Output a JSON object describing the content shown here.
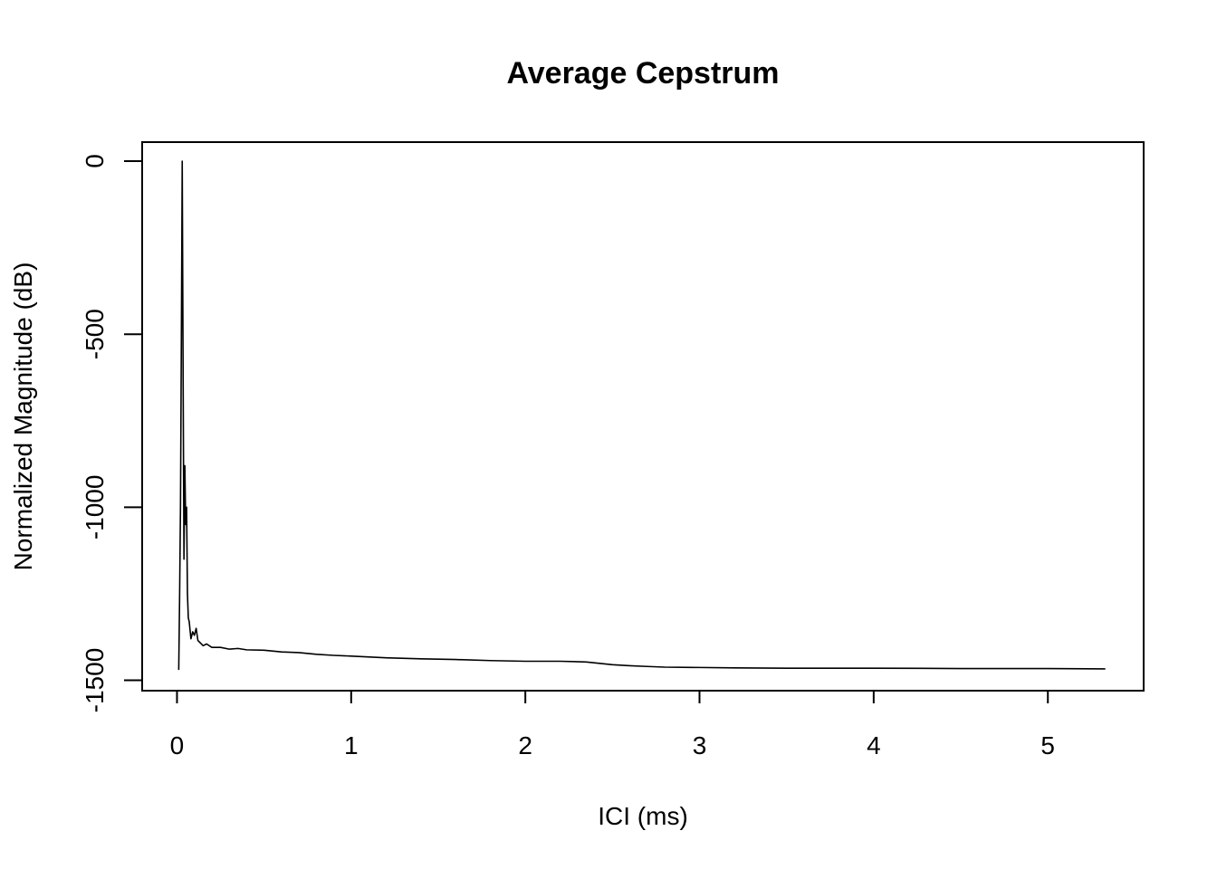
{
  "chart_data": {
    "type": "line",
    "title": "Average Cepstrum",
    "xlabel": "ICI (ms)",
    "ylabel": "Normalized Magnitude (dB)",
    "xlim": [
      -0.2,
      5.55
    ],
    "ylim": [
      -1530,
      55
    ],
    "x_ticks": [
      0,
      1,
      2,
      3,
      4,
      5
    ],
    "x_tick_labels": [
      "0",
      "1",
      "2",
      "3",
      "4",
      "5"
    ],
    "y_ticks": [
      0,
      -500,
      -1000,
      -1500
    ],
    "y_tick_labels": [
      "0",
      "-500",
      "-1000",
      "-1500"
    ],
    "grid": false,
    "legend": "none",
    "series": [
      {
        "color": "#000000",
        "x": [
          0.01,
          0.015,
          0.02,
          0.025,
          0.03,
          0.035,
          0.04,
          0.045,
          0.05,
          0.055,
          0.06,
          0.065,
          0.07,
          0.08,
          0.09,
          0.1,
          0.11,
          0.12,
          0.13,
          0.15,
          0.17,
          0.2,
          0.25,
          0.3,
          0.35,
          0.4,
          0.5,
          0.6,
          0.7,
          0.8,
          0.9,
          1.0,
          1.2,
          1.4,
          1.6,
          1.8,
          2.0,
          2.2,
          2.35,
          2.5,
          2.6,
          2.7,
          2.8,
          3.0,
          3.2,
          3.5,
          4.0,
          4.5,
          5.0,
          5.33
        ],
        "y": [
          -1470,
          -1260,
          -1000,
          -520,
          0,
          -600,
          -1150,
          -880,
          -1050,
          -1000,
          -1250,
          -1320,
          -1330,
          -1380,
          -1360,
          -1370,
          -1350,
          -1385,
          -1390,
          -1400,
          -1395,
          -1405,
          -1405,
          -1410,
          -1408,
          -1412,
          -1413,
          -1418,
          -1420,
          -1425,
          -1428,
          -1430,
          -1435,
          -1438,
          -1440,
          -1443,
          -1445,
          -1445,
          -1447,
          -1455,
          -1458,
          -1460,
          -1462,
          -1463,
          -1464,
          -1465,
          -1465,
          -1466,
          -1466,
          -1467
        ]
      }
    ]
  }
}
